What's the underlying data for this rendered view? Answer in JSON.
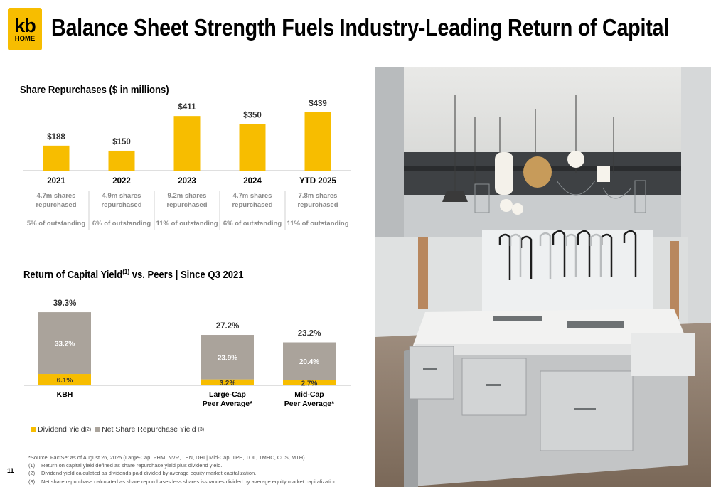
{
  "header": {
    "logo_top": "kb",
    "logo_bottom": "HOME",
    "title": "Balance Sheet Strength Fuels Industry-Leading Return of Capital"
  },
  "repurchase": {
    "title": "Share Repurchases ($ in millions)",
    "subtexts": [
      {
        "shares_line1": "4.7m shares",
        "shares_line2": "repurchased",
        "outstanding": "5% of outstanding"
      },
      {
        "shares_line1": "4.9m shares",
        "shares_line2": "repurchased",
        "outstanding": "6% of outstanding"
      },
      {
        "shares_line1": "9.2m shares",
        "shares_line2": "repurchased",
        "outstanding": "11% of outstanding"
      },
      {
        "shares_line1": "4.7m shares",
        "shares_line2": "repurchased",
        "outstanding": "6% of outstanding"
      },
      {
        "shares_line1": "7.8m shares",
        "shares_line2": "repurchased",
        "outstanding": "11% of outstanding"
      }
    ]
  },
  "yield": {
    "title_part1": "Return of Capital Yield",
    "title_sup": "(1)",
    "title_part2": " vs. Peers  |  Since Q3 2021"
  },
  "legend": {
    "dividend": "Dividend Yield",
    "dividend_sup": "(2)",
    "repurchase": "Net Share Repurchase Yield",
    "repurchase_sup": "(3)"
  },
  "footnotes": {
    "source": "*Source: FactSet as of August 26, 2025  (Large-Cap: PHM, NVR, LEN, DHI | Mid-Cap: TPH, TOL, TMHC, CCS, MTH)",
    "notes": [
      {
        "num": "(1)",
        "text": "Return on capital yield defined as share repurchase yield plus dividend yield."
      },
      {
        "num": "(2)",
        "text": "Dividend yield calculated as dividends paid divided by average equity market capitalization."
      },
      {
        "num": "(3)",
        "text": "Net share repurchase calculated as share repurchases less shares issuances divided by average equity market capitalization."
      }
    ]
  },
  "page_number": "11",
  "colors": {
    "brand_yellow": "#f7bd00",
    "gray_bar": "#aaa39b",
    "sub_text": "#8a8a8a"
  },
  "chart_data": [
    {
      "type": "bar",
      "title": "Share Repurchases ($ in millions)",
      "categories": [
        "2021",
        "2022",
        "2023",
        "2024",
        "YTD 2025"
      ],
      "values": [
        188,
        150,
        411,
        350,
        439
      ],
      "value_labels": [
        "$188",
        "$150",
        "$411",
        "$350",
        "$439"
      ],
      "ylim": [
        0,
        460
      ],
      "color": "#f7bd00"
    },
    {
      "type": "bar",
      "stacked": true,
      "title": "Return of Capital Yield(1) vs. Peers  |  Since Q3 2021",
      "categories": [
        "KBH",
        "",
        "Large-Cap\nPeer Average*",
        "Mid-Cap\nPeer Average*"
      ],
      "category_lines": [
        [
          "KBH"
        ],
        [],
        [
          "Large-Cap",
          "Peer Average*"
        ],
        [
          "Mid-Cap",
          "Peer Average*"
        ]
      ],
      "series": [
        {
          "name": "Dividend Yield",
          "values": [
            6.1,
            null,
            3.2,
            2.7
          ],
          "labels": [
            "6.1%",
            "",
            "3.2%",
            "2.7%"
          ],
          "color": "#f7bd00"
        },
        {
          "name": "Net Share Repurchase Yield",
          "values": [
            33.2,
            null,
            23.9,
            20.4
          ],
          "labels": [
            "33.2%",
            "",
            "23.9%",
            "20.4%"
          ],
          "color": "#aaa39b"
        }
      ],
      "totals": [
        "39.3%",
        "",
        "27.2%",
        "23.2%"
      ],
      "ylim": [
        0,
        42
      ],
      "legend": "bottom-left"
    }
  ]
}
